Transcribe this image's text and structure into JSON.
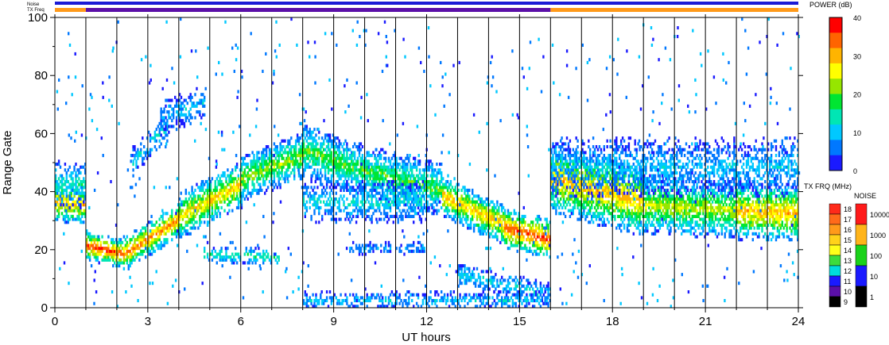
{
  "chart_data": {
    "type": "heatmap",
    "title": "",
    "xlabel": "UT hours",
    "ylabel": "Range Gate",
    "xlim": [
      0,
      24
    ],
    "ylim": [
      0,
      100
    ],
    "x_ticks": [
      0,
      3,
      6,
      9,
      12,
      15,
      18,
      21,
      24
    ],
    "x_tick_labels": [
      "0",
      "3",
      "6",
      "9",
      "12",
      "15",
      "18",
      "21",
      "24"
    ],
    "y_ticks": [
      0,
      20,
      40,
      60,
      80,
      100
    ],
    "y_tick_labels": [
      "0",
      "20",
      "40",
      "60",
      "80",
      "100"
    ],
    "scan_boundaries_ut": [
      1,
      2,
      3,
      4,
      5,
      6,
      7,
      8,
      9,
      10,
      11,
      12,
      13,
      14,
      15,
      16,
      17,
      18,
      19,
      20,
      21,
      22,
      23
    ],
    "status_rows": [
      {
        "label": "Noise",
        "color": "#1a1ad6",
        "segments": [
          [
            0,
            24
          ]
        ]
      },
      {
        "label": "TX Freq",
        "color_segments": [
          {
            "from": 0,
            "to": 1,
            "color": "#ff9a1a"
          },
          {
            "from": 1,
            "to": 16,
            "color": "#5a0fa8"
          },
          {
            "from": 16,
            "to": 24,
            "color": "#ff9a1a"
          }
        ]
      }
    ],
    "power_colorbar": {
      "label": "POWER (dB)",
      "min": 0,
      "max": 40,
      "tick_labels": [
        "40",
        "30",
        "20",
        "10",
        "0"
      ],
      "colors": [
        "#1a1aff",
        "#0078ff",
        "#00c8ff",
        "#00e6b4",
        "#00e632",
        "#96e600",
        "#ffff00",
        "#ffb400",
        "#ff6400",
        "#ff0000"
      ]
    },
    "tx_frq_legend": {
      "label": "TX FRQ (MHz)",
      "levels": [
        "18",
        "17",
        "16",
        "15",
        "14",
        "13",
        "12",
        "11",
        "10",
        "9"
      ],
      "colors": [
        "#ff2a1a",
        "#ff6a1a",
        "#ff9a1a",
        "#ffd21a",
        "#ffff1a",
        "#3cdc3c",
        "#00dcdc",
        "#1a1aff",
        "#5a0fa8",
        "#000000"
      ]
    },
    "noise_legend": {
      "label": "NOISE",
      "levels": [
        "10000",
        "1000",
        "100",
        "10",
        "1"
      ],
      "colors": [
        "#ff1a1a",
        "#ffb41a",
        "#1ad21a",
        "#1a1aff",
        "#000000"
      ]
    },
    "echo_bands": [
      {
        "ut_start": 0.0,
        "ut_end": 1.0,
        "gate_center_start": 36,
        "gate_center_end": 35,
        "width": 7,
        "peak_db": 30
      },
      {
        "ut_start": 1.0,
        "ut_end": 2.2,
        "gate_center_start": 21,
        "gate_center_end": 18,
        "width": 5,
        "peak_db": 36
      },
      {
        "ut_start": 2.2,
        "ut_end": 4.0,
        "gate_center_start": 18,
        "gate_center_end": 30,
        "width": 6,
        "peak_db": 33
      },
      {
        "ut_start": 4.0,
        "ut_end": 6.0,
        "gate_center_start": 31,
        "gate_center_end": 42,
        "width": 8,
        "peak_db": 28
      },
      {
        "ut_start": 6.0,
        "ut_end": 8.0,
        "gate_center_start": 44,
        "gate_center_end": 52,
        "width": 8,
        "peak_db": 22
      },
      {
        "ut_start": 8.0,
        "ut_end": 9.5,
        "gate_center_start": 54,
        "gate_center_end": 48,
        "width": 9,
        "peak_db": 20
      },
      {
        "ut_start": 9.5,
        "ut_end": 12.5,
        "gate_center_start": 48,
        "gate_center_end": 40,
        "width": 9,
        "peak_db": 19
      },
      {
        "ut_start": 12.5,
        "ut_end": 14.5,
        "gate_center_start": 38,
        "gate_center_end": 28,
        "width": 7,
        "peak_db": 30
      },
      {
        "ut_start": 14.5,
        "ut_end": 16.0,
        "gate_center_start": 27,
        "gate_center_end": 23,
        "width": 7,
        "peak_db": 36
      },
      {
        "ut_start": 16.0,
        "ut_end": 19.0,
        "gate_center_start": 44,
        "gate_center_end": 36,
        "width": 12,
        "peak_db": 30
      },
      {
        "ut_start": 19.0,
        "ut_end": 22.0,
        "gate_center_start": 35,
        "gate_center_end": 33,
        "width": 10,
        "peak_db": 24
      },
      {
        "ut_start": 22.0,
        "ut_end": 24.0,
        "gate_center_start": 33,
        "gate_center_end": 32,
        "width": 10,
        "peak_db": 30
      }
    ],
    "secondary_bands": [
      {
        "ut_start": 0.0,
        "ut_end": 1.0,
        "gate_center_start": 42,
        "gate_center_end": 42,
        "width": 8,
        "peak_db": 14
      },
      {
        "ut_start": 2.5,
        "ut_end": 3.6,
        "gate_center_start": 50,
        "gate_center_end": 62,
        "width": 5,
        "peak_db": 12
      },
      {
        "ut_start": 3.4,
        "ut_end": 4.8,
        "gate_center_start": 65,
        "gate_center_end": 70,
        "width": 6,
        "peak_db": 10
      },
      {
        "ut_start": 4.8,
        "ut_end": 7.2,
        "gate_center_start": 18,
        "gate_center_end": 17,
        "width": 3,
        "peak_db": 16
      },
      {
        "ut_start": 8.0,
        "ut_end": 12.0,
        "gate_center_start": 36,
        "gate_center_end": 36,
        "width": 7,
        "peak_db": 12
      },
      {
        "ut_start": 9.5,
        "ut_end": 12.0,
        "gate_center_start": 20,
        "gate_center_end": 20,
        "width": 2,
        "peak_db": 8
      },
      {
        "ut_start": 13.0,
        "ut_end": 16.0,
        "gate_center_start": 11,
        "gate_center_end": 4,
        "width": 4,
        "peak_db": 12
      },
      {
        "ut_start": 8.0,
        "ut_end": 16.0,
        "gate_center_start": 2,
        "gate_center_end": 2,
        "width": 3,
        "peak_db": 10
      },
      {
        "ut_start": 16.0,
        "ut_end": 24.0,
        "gate_center_start": 48,
        "gate_center_end": 48,
        "width": 10,
        "peak_db": 10
      }
    ]
  }
}
